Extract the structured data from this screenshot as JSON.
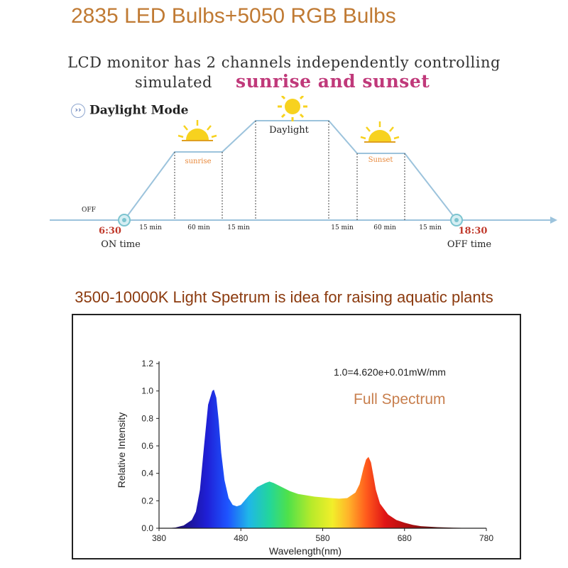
{
  "headline": "2835 LED Bulbs+5050 RGB Bulbs",
  "lcd_description": {
    "line1": "LCD monitor has 2 channels independently controlling",
    "line2_prefix": "simulated",
    "line2_highlight": "sunrise and sunset"
  },
  "mode": {
    "label": "Daylight Mode",
    "icon": "chevron-circle-icon"
  },
  "schedule": {
    "off_label": "OFF",
    "phases": {
      "sunrise": "sunrise",
      "daylight": "Daylight",
      "sunset": "Sunset"
    },
    "durations": [
      "15 min",
      "60 min",
      "15 min",
      "15 min",
      "60 min",
      "15 min"
    ],
    "on": {
      "time": "6:30",
      "label": "ON time"
    },
    "off": {
      "time": "18:30",
      "label": "OFF time"
    },
    "icons": [
      "sun-icon",
      "moon-icon"
    ],
    "colors": {
      "line": "#9cc3dc",
      "phase": "#e8883a",
      "time": "#c0392b",
      "sun": "#f7d21f",
      "moon": "#f2d21e"
    }
  },
  "spectrum_heading": "3500-10000K Light Spetrum is idea for raising aquatic plants",
  "chart_data": {
    "type": "area",
    "title": "Full Spectrum",
    "annotation": "1.0=4.620e+0.01mW/mm",
    "xlabel": "Wavelength(nm)",
    "ylabel": "Relative Intensity",
    "xlim": [
      380,
      780
    ],
    "ylim": [
      0,
      1.2
    ],
    "x_ticks": [
      "380",
      "480",
      "580",
      "680",
      "780"
    ],
    "y_ticks": [
      "0.0",
      "0.2",
      "0.4",
      "0.6",
      "0.8",
      "1.0",
      "1.2"
    ],
    "grid": false,
    "x": [
      390,
      400,
      410,
      420,
      425,
      430,
      435,
      440,
      445,
      447,
      450,
      453,
      456,
      460,
      465,
      470,
      475,
      480,
      490,
      500,
      510,
      515,
      520,
      530,
      540,
      550,
      560,
      570,
      580,
      590,
      600,
      610,
      620,
      625,
      630,
      633,
      636,
      639,
      642,
      645,
      650,
      660,
      670,
      680,
      690,
      700,
      720,
      740,
      760,
      780
    ],
    "values": [
      0.0,
      0.005,
      0.02,
      0.06,
      0.12,
      0.28,
      0.6,
      0.9,
      1.0,
      1.01,
      0.95,
      0.78,
      0.55,
      0.35,
      0.22,
      0.17,
      0.16,
      0.17,
      0.24,
      0.3,
      0.33,
      0.34,
      0.33,
      0.3,
      0.27,
      0.25,
      0.24,
      0.23,
      0.225,
      0.22,
      0.215,
      0.22,
      0.26,
      0.32,
      0.44,
      0.5,
      0.52,
      0.48,
      0.38,
      0.28,
      0.18,
      0.1,
      0.06,
      0.04,
      0.025,
      0.015,
      0.008,
      0.004,
      0.001,
      0.0
    ],
    "title_color": "#c87f4e"
  }
}
